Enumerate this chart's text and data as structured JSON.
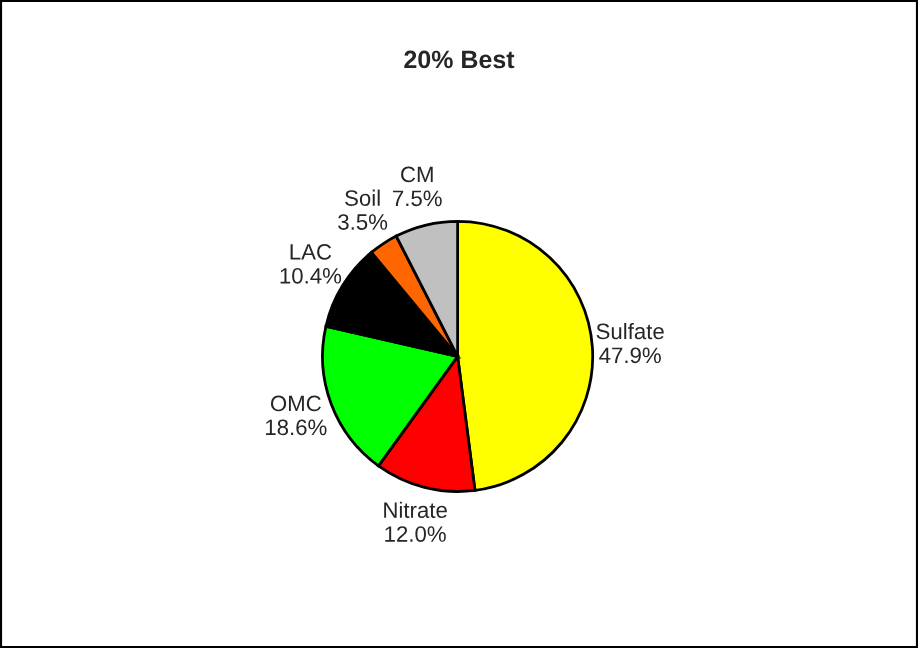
{
  "chart_data": {
    "type": "pie",
    "title": "20% Best",
    "categories": [
      "Sulfate",
      "Nitrate",
      "OMC",
      "LAC",
      "Soil",
      "CM"
    ],
    "values": [
      47.9,
      12.0,
      18.6,
      10.4,
      3.5,
      7.5
    ],
    "colors": [
      "#ffff00",
      "#ff0000",
      "#00ff00",
      "#000000",
      "#ff6600",
      "#c0c0c0"
    ],
    "value_labels": [
      "47.9%",
      "12.0%",
      "18.6%",
      "10.4%",
      "3.5%",
      "7.5%"
    ]
  }
}
